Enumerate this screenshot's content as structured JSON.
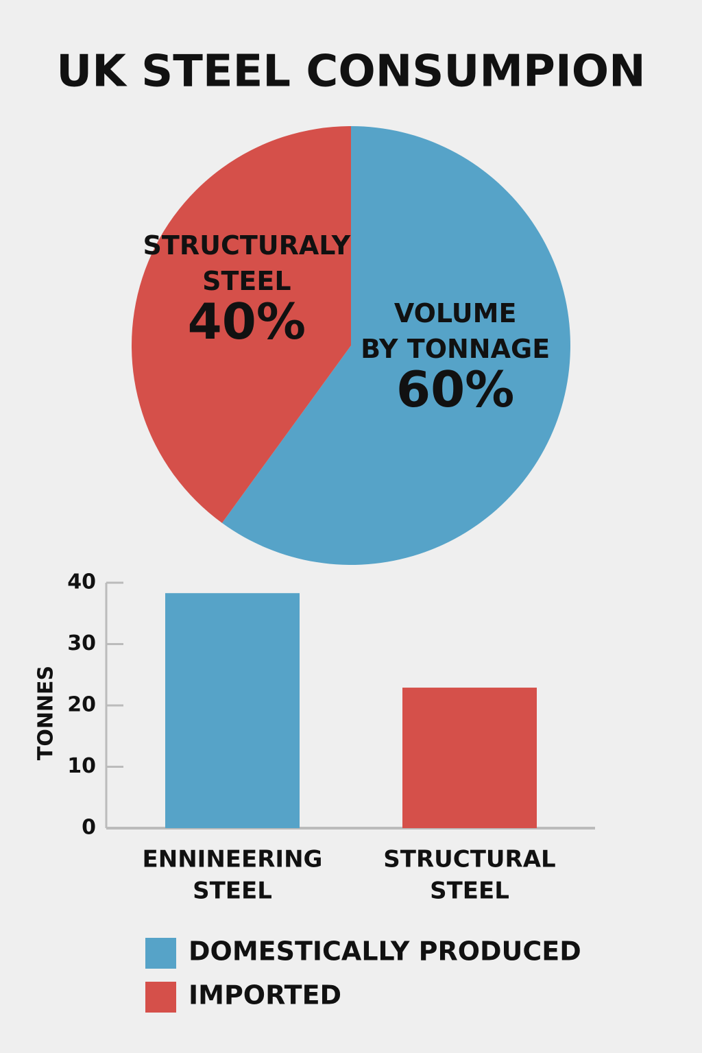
{
  "chart_data": [
    {
      "type": "pie",
      "title": "UK STEEL CONSUMPION",
      "categories": [
        [
          "VOLUME",
          "BY TONNAGE"
        ],
        [
          "STRUCTURALY",
          "STEEL"
        ]
      ],
      "values": [
        60,
        40
      ],
      "value_labels": [
        "60%",
        "40%"
      ],
      "colors": [
        "#56a3c8",
        "#d5504a"
      ]
    },
    {
      "type": "bar",
      "y_label": "TONNES",
      "categories": [
        [
          "ENNINEERING",
          "STEEL"
        ],
        [
          "STRUCTURAL",
          "STEEL"
        ]
      ],
      "series": [
        {
          "name": "DOMESTICALLY PRODUCED",
          "color": "#56a3c8",
          "values": [
            38.3,
            null
          ]
        },
        {
          "name": "IMPORTED",
          "color": "#d5504a",
          "values": [
            null,
            22.9
          ]
        }
      ],
      "ylim": [
        0,
        40
      ],
      "yticks": [
        0,
        10,
        20,
        30,
        40
      ]
    }
  ]
}
